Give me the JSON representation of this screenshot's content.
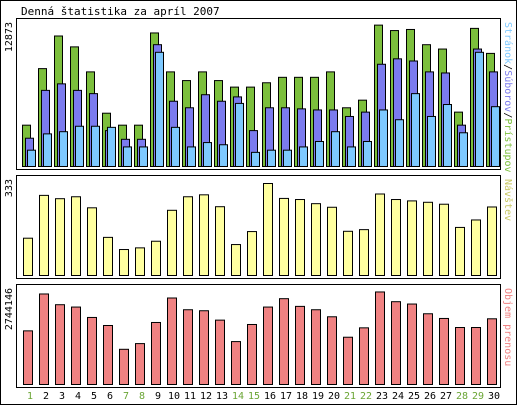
{
  "title": "Denná štatistika za apríl 2007",
  "colors": {
    "border": "#000000",
    "green": "#7cbf3c",
    "blue": "#7b7bee",
    "lightblue": "#7ec9ff",
    "yellow": "#ffffa0",
    "red": "#f08282",
    "weekend_label": "#6aa534",
    "weekday_label": "#000000"
  },
  "chart_data": [
    {
      "type": "bar",
      "panel": "top",
      "categories": [
        "1",
        "2",
        "3",
        "4",
        "5",
        "6",
        "7",
        "8",
        "9",
        "10",
        "11",
        "12",
        "13",
        "14",
        "15",
        "16",
        "17",
        "18",
        "19",
        "20",
        "21",
        "22",
        "23",
        "24",
        "25",
        "26",
        "27",
        "28",
        "29",
        "30"
      ],
      "weekend_days": [
        "1",
        "7",
        "8",
        "14",
        "15",
        "21",
        "22",
        "28",
        "29"
      ],
      "y_tick_label": "12873",
      "ylim": [
        0,
        12873
      ],
      "side_label": {
        "parts": [
          {
            "text": "Stránok",
            "color": "#7ec9ff"
          },
          {
            "text": "/",
            "color": "#000000"
          },
          {
            "text": "Súborov",
            "color": "#7b7bee"
          },
          {
            "text": "/",
            "color": "#000000"
          },
          {
            "text": "Prístupov",
            "color": "#7cbf3c"
          }
        ]
      },
      "series": [
        {
          "name": "Prístupov",
          "color": "#7cbf3c",
          "values": [
            3800,
            9000,
            12000,
            11000,
            8700,
            4900,
            3800,
            3800,
            12280,
            8700,
            7900,
            8700,
            7900,
            7300,
            7300,
            7700,
            8200,
            8200,
            8200,
            8700,
            5400,
            6100,
            13000,
            12500,
            12600,
            11200,
            10800,
            5000,
            12700,
            10400
          ]
        },
        {
          "name": "Súborov",
          "color": "#7b7bee",
          "values": [
            2600,
            7000,
            7600,
            7000,
            6700,
            3300,
            2500,
            2500,
            11200,
            6000,
            5400,
            6600,
            6000,
            6400,
            3300,
            5400,
            5400,
            5300,
            5200,
            5200,
            4600,
            5000,
            9400,
            9900,
            9700,
            8700,
            8600,
            3800,
            10800,
            8700
          ]
        },
        {
          "name": "Stránok",
          "color": "#7ec9ff",
          "values": [
            1500,
            3000,
            3200,
            3700,
            3700,
            3600,
            1800,
            1800,
            10500,
            3600,
            1800,
            2200,
            2000,
            5800,
            1300,
            1500,
            1500,
            1800,
            2300,
            3200,
            1800,
            2300,
            5200,
            4300,
            6700,
            4600,
            5700,
            3100,
            10500,
            5500
          ]
        }
      ]
    },
    {
      "type": "bar",
      "panel": "middle",
      "categories": [
        "1",
        "2",
        "3",
        "4",
        "5",
        "6",
        "7",
        "8",
        "9",
        "10",
        "11",
        "12",
        "13",
        "14",
        "15",
        "16",
        "17",
        "18",
        "19",
        "20",
        "21",
        "22",
        "23",
        "24",
        "25",
        "26",
        "27",
        "28",
        "29",
        "30"
      ],
      "y_tick_label": "333",
      "ylim": [
        0,
        333
      ],
      "side_label": {
        "parts": [
          {
            "text": "Návštev",
            "color": "#c8c864"
          }
        ]
      },
      "series": [
        {
          "name": "Návštev",
          "color": "#ffffa0",
          "values": [
            135,
            290,
            278,
            285,
            245,
            138,
            94,
            100,
            124,
            236,
            285,
            292,
            249,
            112,
            159,
            333,
            279,
            275,
            260,
            247,
            160,
            166,
            295,
            275,
            270,
            265,
            258,
            174,
            201,
            248
          ]
        }
      ]
    },
    {
      "type": "bar",
      "panel": "bottom",
      "categories": [
        "1",
        "2",
        "3",
        "4",
        "5",
        "6",
        "7",
        "8",
        "9",
        "10",
        "11",
        "12",
        "13",
        "14",
        "15",
        "16",
        "17",
        "18",
        "19",
        "20",
        "21",
        "22",
        "23",
        "24",
        "25",
        "26",
        "27",
        "28",
        "29",
        "30"
      ],
      "y_tick_label": "2744146",
      "ylim": [
        0,
        2744146
      ],
      "side_label": {
        "parts": [
          {
            "text": "Objem prenosu",
            "color": "#f08282"
          }
        ]
      },
      "series": [
        {
          "name": "Objem prenosu",
          "color": "#f08282",
          "values": [
            1600000,
            2700000,
            2380000,
            2310000,
            2000000,
            1760000,
            1050000,
            1220000,
            1850000,
            2580000,
            2230000,
            2200000,
            1920000,
            1280000,
            1790000,
            2310000,
            2560000,
            2330000,
            2230000,
            2020000,
            1410000,
            1690000,
            2760000,
            2470000,
            2400000,
            2110000,
            1970000,
            1700000,
            1700000,
            1960000
          ]
        }
      ]
    }
  ]
}
